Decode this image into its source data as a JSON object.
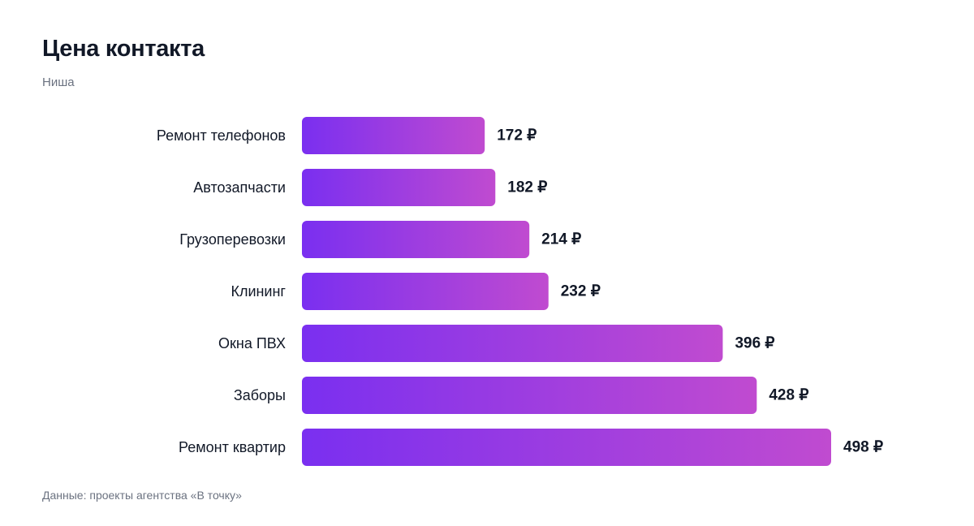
{
  "title": "Цена контакта",
  "subtitle": "Ниша",
  "footer": "Данные: проекты агентства «В точку»",
  "colors": {
    "bar_gradient_start": "#7a2ff0",
    "bar_gradient_end": "#c04bd0",
    "text": "#111827",
    "muted": "#6b7280"
  },
  "chart_data": {
    "type": "bar",
    "orientation": "horizontal",
    "categories": [
      "Ремонт телефонов",
      "Автозапчасти",
      "Грузоперевозки",
      "Клининг",
      "Окна ПВХ",
      "Заборы",
      "Ремонт квартир"
    ],
    "values": [
      172,
      182,
      214,
      232,
      396,
      428,
      498
    ],
    "value_labels": [
      "172 ₽",
      "182 ₽",
      "214 ₽",
      "232 ₽",
      "396 ₽",
      "428 ₽",
      "498 ₽"
    ],
    "unit": "₽",
    "xlim": [
      0,
      498
    ],
    "grid": false,
    "legend": "none"
  }
}
